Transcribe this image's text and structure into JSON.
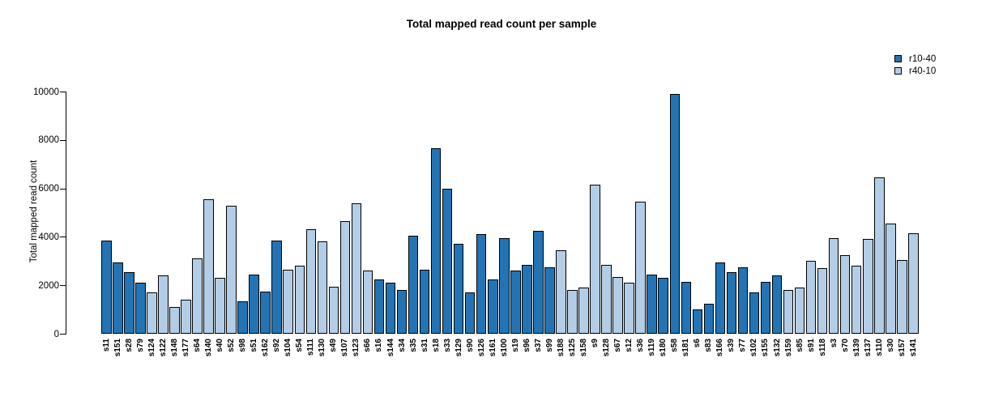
{
  "title": "Total mapped read count per sample",
  "chart_data": {
    "type": "bar",
    "title": "Total mapped read count per sample",
    "xlabel": "",
    "ylabel": "Total mapped read count",
    "ylim": [
      0,
      10000
    ],
    "yticks": [
      0,
      2000,
      4000,
      6000,
      8000,
      10000
    ],
    "grid": false,
    "legend_position": "top-right",
    "bar_border_color": "#000000",
    "series": [
      {
        "name": "r10-40",
        "color": "#2374b5"
      },
      {
        "name": "r40-10",
        "color": "#b3cde6"
      }
    ],
    "samples": [
      {
        "name": "s11",
        "value": 3850,
        "series": "r10-40"
      },
      {
        "name": "s151",
        "value": 2950,
        "series": "r10-40"
      },
      {
        "name": "s28",
        "value": 2550,
        "series": "r10-40"
      },
      {
        "name": "s79",
        "value": 2100,
        "series": "r10-40"
      },
      {
        "name": "s124",
        "value": 1700,
        "series": "r40-10"
      },
      {
        "name": "s122",
        "value": 2400,
        "series": "r40-10"
      },
      {
        "name": "s148",
        "value": 1100,
        "series": "r40-10"
      },
      {
        "name": "s177",
        "value": 1400,
        "series": "r40-10"
      },
      {
        "name": "s64",
        "value": 3100,
        "series": "r40-10"
      },
      {
        "name": "s140",
        "value": 5550,
        "series": "r40-10"
      },
      {
        "name": "s40",
        "value": 2300,
        "series": "r40-10"
      },
      {
        "name": "s52",
        "value": 5300,
        "series": "r40-10"
      },
      {
        "name": "s98",
        "value": 1350,
        "series": "r10-40"
      },
      {
        "name": "s51",
        "value": 2450,
        "series": "r10-40"
      },
      {
        "name": "s162",
        "value": 1750,
        "series": "r10-40"
      },
      {
        "name": "s92",
        "value": 3850,
        "series": "r10-40"
      },
      {
        "name": "s104",
        "value": 2650,
        "series": "r40-10"
      },
      {
        "name": "s54",
        "value": 2800,
        "series": "r40-10"
      },
      {
        "name": "s111",
        "value": 4300,
        "series": "r40-10"
      },
      {
        "name": "s130",
        "value": 3800,
        "series": "r40-10"
      },
      {
        "name": "s49",
        "value": 1950,
        "series": "r40-10"
      },
      {
        "name": "s107",
        "value": 4650,
        "series": "r40-10"
      },
      {
        "name": "s123",
        "value": 5400,
        "series": "r40-10"
      },
      {
        "name": "s66",
        "value": 2600,
        "series": "r40-10"
      },
      {
        "name": "s16",
        "value": 2250,
        "series": "r10-40"
      },
      {
        "name": "s144",
        "value": 2100,
        "series": "r10-40"
      },
      {
        "name": "s34",
        "value": 1800,
        "series": "r10-40"
      },
      {
        "name": "s35",
        "value": 4050,
        "series": "r10-40"
      },
      {
        "name": "s31",
        "value": 2650,
        "series": "r10-40"
      },
      {
        "name": "s18",
        "value": 7650,
        "series": "r10-40"
      },
      {
        "name": "s33",
        "value": 6000,
        "series": "r10-40"
      },
      {
        "name": "s129",
        "value": 3700,
        "series": "r10-40"
      },
      {
        "name": "s90",
        "value": 1700,
        "series": "r10-40"
      },
      {
        "name": "s126",
        "value": 4100,
        "series": "r10-40"
      },
      {
        "name": "s161",
        "value": 2250,
        "series": "r10-40"
      },
      {
        "name": "s100",
        "value": 3950,
        "series": "r10-40"
      },
      {
        "name": "s19",
        "value": 2600,
        "series": "r10-40"
      },
      {
        "name": "s96",
        "value": 2850,
        "series": "r10-40"
      },
      {
        "name": "s37",
        "value": 4250,
        "series": "r10-40"
      },
      {
        "name": "s99",
        "value": 2750,
        "series": "r10-40"
      },
      {
        "name": "s188",
        "value": 3450,
        "series": "r40-10"
      },
      {
        "name": "s125",
        "value": 1800,
        "series": "r40-10"
      },
      {
        "name": "s158",
        "value": 1900,
        "series": "r40-10"
      },
      {
        "name": "s9",
        "value": 6150,
        "series": "r40-10"
      },
      {
        "name": "s128",
        "value": 2850,
        "series": "r40-10"
      },
      {
        "name": "s67",
        "value": 2350,
        "series": "r40-10"
      },
      {
        "name": "s12",
        "value": 2100,
        "series": "r40-10"
      },
      {
        "name": "s36",
        "value": 5450,
        "series": "r40-10"
      },
      {
        "name": "s119",
        "value": 2450,
        "series": "r10-40"
      },
      {
        "name": "s180",
        "value": 2300,
        "series": "r10-40"
      },
      {
        "name": "s58",
        "value": 9900,
        "series": "r10-40"
      },
      {
        "name": "s181",
        "value": 2150,
        "series": "r10-40"
      },
      {
        "name": "s6",
        "value": 1000,
        "series": "r10-40"
      },
      {
        "name": "s83",
        "value": 1250,
        "series": "r10-40"
      },
      {
        "name": "s166",
        "value": 2950,
        "series": "r10-40"
      },
      {
        "name": "s39",
        "value": 2550,
        "series": "r10-40"
      },
      {
        "name": "s77",
        "value": 2750,
        "series": "r10-40"
      },
      {
        "name": "s102",
        "value": 1700,
        "series": "r10-40"
      },
      {
        "name": "s155",
        "value": 2150,
        "series": "r10-40"
      },
      {
        "name": "s132",
        "value": 2400,
        "series": "r10-40"
      },
      {
        "name": "s159",
        "value": 1800,
        "series": "r40-10"
      },
      {
        "name": "s85",
        "value": 1900,
        "series": "r40-10"
      },
      {
        "name": "s91",
        "value": 3000,
        "series": "r40-10"
      },
      {
        "name": "s118",
        "value": 2700,
        "series": "r40-10"
      },
      {
        "name": "s3",
        "value": 3950,
        "series": "r40-10"
      },
      {
        "name": "s70",
        "value": 3250,
        "series": "r40-10"
      },
      {
        "name": "s139",
        "value": 2800,
        "series": "r40-10"
      },
      {
        "name": "s137",
        "value": 3900,
        "series": "r40-10"
      },
      {
        "name": "s110",
        "value": 6450,
        "series": "r40-10"
      },
      {
        "name": "s30",
        "value": 4550,
        "series": "r40-10"
      },
      {
        "name": "s157",
        "value": 3050,
        "series": "r40-10"
      },
      {
        "name": "s141",
        "value": 4150,
        "series": "r40-10"
      }
    ]
  }
}
